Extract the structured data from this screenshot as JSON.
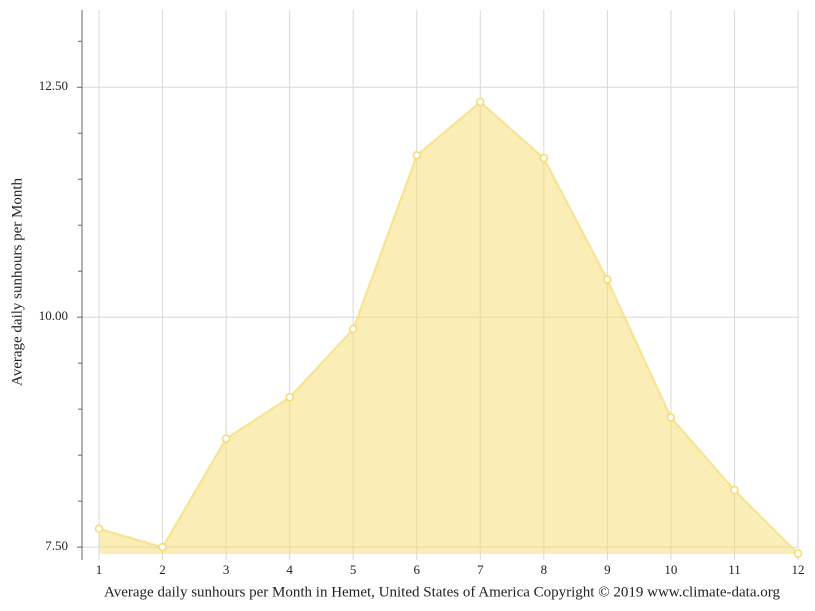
{
  "chart_data": {
    "type": "area",
    "x_label": "Average daily sunhours per Month in Hemet, United States of America Copyright © 2019 www.climate-data.org",
    "y_label": "Average daily sunhours per Month",
    "x": [
      1,
      2,
      3,
      4,
      5,
      6,
      7,
      8,
      9,
      10,
      11,
      12
    ],
    "series": [
      {
        "name": "Average daily sunhours",
        "color": "#f5dc6e",
        "values": [
          7.7,
          7.5,
          8.68,
          9.13,
          9.87,
          11.76,
          12.34,
          11.73,
          10.41,
          8.91,
          8.12,
          7.43
        ]
      }
    ],
    "xlim": [
      1,
      12
    ],
    "xticks": [
      1,
      2,
      3,
      4,
      5,
      6,
      7,
      8,
      9,
      10,
      11,
      12
    ],
    "ylim": [
      7.36,
      13.34
    ],
    "yticks": [
      {
        "value": 7.5,
        "label": "7.50"
      },
      {
        "value": 10,
        "label": "10.00"
      },
      {
        "value": 12.5,
        "label": "12.50"
      }
    ],
    "yminorticks": [
      8,
      8.5,
      9,
      9.5,
      10.5,
      11,
      11.5,
      12,
      13
    ],
    "grid": true
  }
}
